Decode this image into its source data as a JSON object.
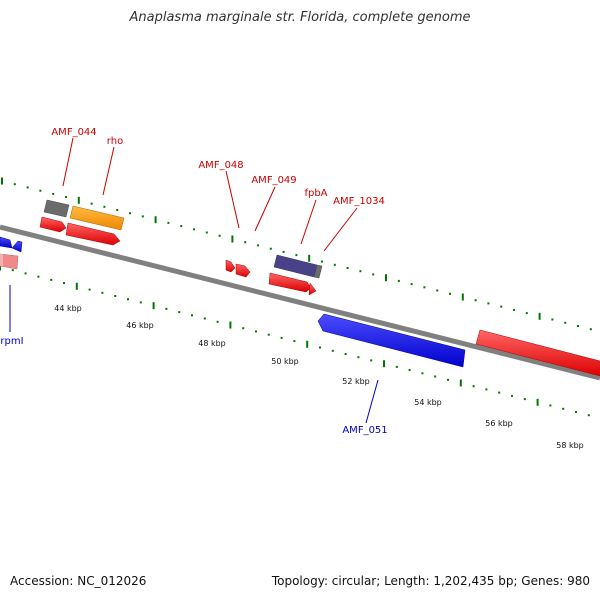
{
  "title": "Anaplasma marginale str. Florida, complete genome",
  "footer": {
    "accession": "Accession: NC_012026",
    "summary": "Topology: circular; Length: 1,202,435 bp; Genes: 980"
  },
  "colors": {
    "forward_gene": "#ff0000",
    "reverse_gene": "#0000ee",
    "pseudo_gene": "#f08080",
    "rna_gene": "#ff9900",
    "other_gene": "#666666",
    "hypothetical_gene": "#4a4288",
    "backbone": "#808080",
    "tick": "#007700",
    "forward_label": "#cc0000",
    "reverse_label": "#0000cc"
  },
  "scale_labels": [
    "44 kbp",
    "46 kbp",
    "48 kbp",
    "50 kbp",
    "52 kbp",
    "54 kbp",
    "56 kbp",
    "58 kbp"
  ],
  "gene_labels": [
    {
      "name": "AMF_044",
      "strand": "forward"
    },
    {
      "name": "rho",
      "strand": "forward"
    },
    {
      "name": "AMF_048",
      "strand": "forward"
    },
    {
      "name": "AMF_049",
      "strand": "forward"
    },
    {
      "name": "fpbA",
      "strand": "forward"
    },
    {
      "name": "AMF_1034",
      "strand": "forward"
    },
    {
      "name": "rpmI",
      "strand": "reverse"
    },
    {
      "name": "AMF_051",
      "strand": "reverse"
    }
  ]
}
